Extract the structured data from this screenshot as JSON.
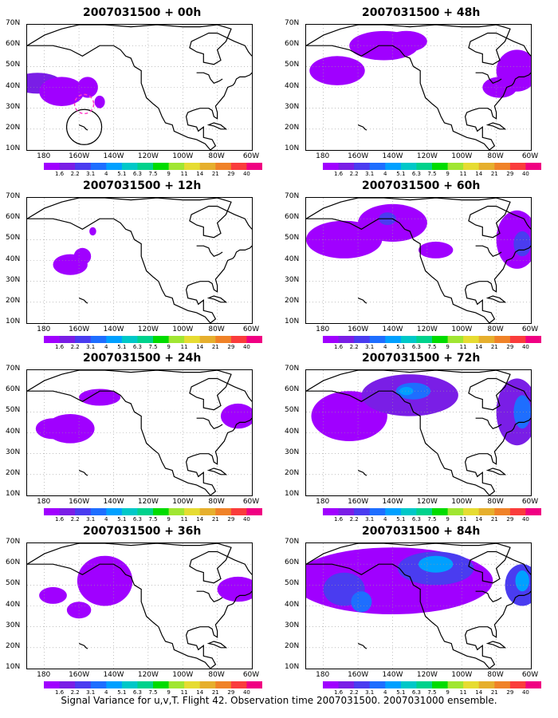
{
  "caption": "Signal Variance for u,v,T. Flight 42. Observation time 2007031500. 2007031000 ensemble.",
  "y_labels": [
    "70N",
    "60N",
    "50N",
    "40N",
    "30N",
    "20N",
    "10N"
  ],
  "x_labels": [
    "180",
    "160W",
    "140W",
    "120W",
    "100W",
    "80W",
    "60W"
  ],
  "colorbar": {
    "labels": [
      "1.6",
      "2.2",
      "3.1",
      "4",
      "5.1",
      "6.3",
      "7.5",
      "9",
      "11",
      "14",
      "21",
      "29",
      "40"
    ],
    "colors": [
      "#a000ff",
      "#7a1ee6",
      "#4a3cf0",
      "#1e6eff",
      "#00a0ff",
      "#00c8c8",
      "#00d28c",
      "#00dc00",
      "#a0e632",
      "#e6dc32",
      "#e6af2d",
      "#f08228",
      "#fa3c3c",
      "#f00082"
    ]
  },
  "panels": [
    {
      "title": "2007031500 + 00h",
      "blobs": [
        {
          "x": 184,
          "y": 42,
          "rx": 14,
          "ry": 5,
          "c": 1
        },
        {
          "x": 170,
          "y": 38,
          "rx": 13,
          "ry": 7,
          "c": 0
        },
        {
          "x": 155,
          "y": 40,
          "rx": 6,
          "ry": 5,
          "c": 0
        },
        {
          "x": 148,
          "y": 33,
          "rx": 3,
          "ry": 3,
          "c": 0
        }
      ]
    },
    {
      "title": "2007031500 + 48h",
      "blobs": [
        {
          "x": 172,
          "y": 48,
          "rx": 16,
          "ry": 7,
          "c": 0
        },
        {
          "x": 145,
          "y": 60,
          "rx": 20,
          "ry": 7,
          "c": 0
        },
        {
          "x": 132,
          "y": 62,
          "rx": 12,
          "ry": 5,
          "c": 0
        },
        {
          "x": 68,
          "y": 48,
          "rx": 12,
          "ry": 10,
          "c": 0
        },
        {
          "x": 78,
          "y": 40,
          "rx": 10,
          "ry": 5,
          "c": 0
        }
      ]
    },
    {
      "title": "2007031500 + 12h",
      "blobs": [
        {
          "x": 165,
          "y": 38,
          "rx": 10,
          "ry": 5,
          "c": 0
        },
        {
          "x": 158,
          "y": 42,
          "rx": 5,
          "ry": 4,
          "c": 0
        },
        {
          "x": 152,
          "y": 54,
          "rx": 2,
          "ry": 2,
          "c": 0
        }
      ]
    },
    {
      "title": "2007031500 + 60h",
      "blobs": [
        {
          "x": 168,
          "y": 50,
          "rx": 22,
          "ry": 9,
          "c": 0
        },
        {
          "x": 140,
          "y": 58,
          "rx": 20,
          "ry": 9,
          "c": 0
        },
        {
          "x": 143,
          "y": 60,
          "rx": 5,
          "ry": 3,
          "c": 2
        },
        {
          "x": 115,
          "y": 45,
          "rx": 10,
          "ry": 4,
          "c": 0
        },
        {
          "x": 68,
          "y": 50,
          "rx": 12,
          "ry": 14,
          "c": 0
        },
        {
          "x": 65,
          "y": 48,
          "rx": 5,
          "ry": 6,
          "c": 2
        }
      ]
    },
    {
      "title": "2007031500 + 24h",
      "blobs": [
        {
          "x": 165,
          "y": 42,
          "rx": 14,
          "ry": 7,
          "c": 0
        },
        {
          "x": 148,
          "y": 57,
          "rx": 12,
          "ry": 4,
          "c": 0
        },
        {
          "x": 175,
          "y": 42,
          "rx": 10,
          "ry": 5,
          "c": 0
        },
        {
          "x": 68,
          "y": 48,
          "rx": 10,
          "ry": 6,
          "c": 0
        }
      ]
    },
    {
      "title": "2007031500 + 72h",
      "blobs": [
        {
          "x": 165,
          "y": 48,
          "rx": 22,
          "ry": 12,
          "c": 0
        },
        {
          "x": 130,
          "y": 58,
          "rx": 28,
          "ry": 10,
          "c": 1
        },
        {
          "x": 128,
          "y": 60,
          "rx": 10,
          "ry": 4,
          "c": 3
        },
        {
          "x": 132,
          "y": 60,
          "rx": 4,
          "ry": 2,
          "c": 4
        },
        {
          "x": 68,
          "y": 50,
          "rx": 12,
          "ry": 16,
          "c": 1
        },
        {
          "x": 65,
          "y": 50,
          "rx": 5,
          "ry": 8,
          "c": 3
        }
      ]
    },
    {
      "title": "2007031500 + 36h",
      "blobs": [
        {
          "x": 145,
          "y": 52,
          "rx": 16,
          "ry": 12,
          "c": 0
        },
        {
          "x": 175,
          "y": 45,
          "rx": 8,
          "ry": 4,
          "c": 0
        },
        {
          "x": 160,
          "y": 38,
          "rx": 7,
          "ry": 4,
          "c": 0
        },
        {
          "x": 68,
          "y": 48,
          "rx": 12,
          "ry": 6,
          "c": 0
        }
      ]
    },
    {
      "title": "2007031500 + 84h",
      "blobs": [
        {
          "x": 140,
          "y": 52,
          "rx": 58,
          "ry": 16,
          "c": 0
        },
        {
          "x": 115,
          "y": 58,
          "rx": 22,
          "ry": 8,
          "c": 2
        },
        {
          "x": 115,
          "y": 60,
          "rx": 10,
          "ry": 4,
          "c": 4
        },
        {
          "x": 168,
          "y": 48,
          "rx": 12,
          "ry": 8,
          "c": 2
        },
        {
          "x": 158,
          "y": 42,
          "rx": 6,
          "ry": 5,
          "c": 3
        },
        {
          "x": 65,
          "y": 50,
          "rx": 10,
          "ry": 10,
          "c": 2
        },
        {
          "x": 65,
          "y": 52,
          "rx": 4,
          "ry": 5,
          "c": 4
        }
      ]
    }
  ]
}
